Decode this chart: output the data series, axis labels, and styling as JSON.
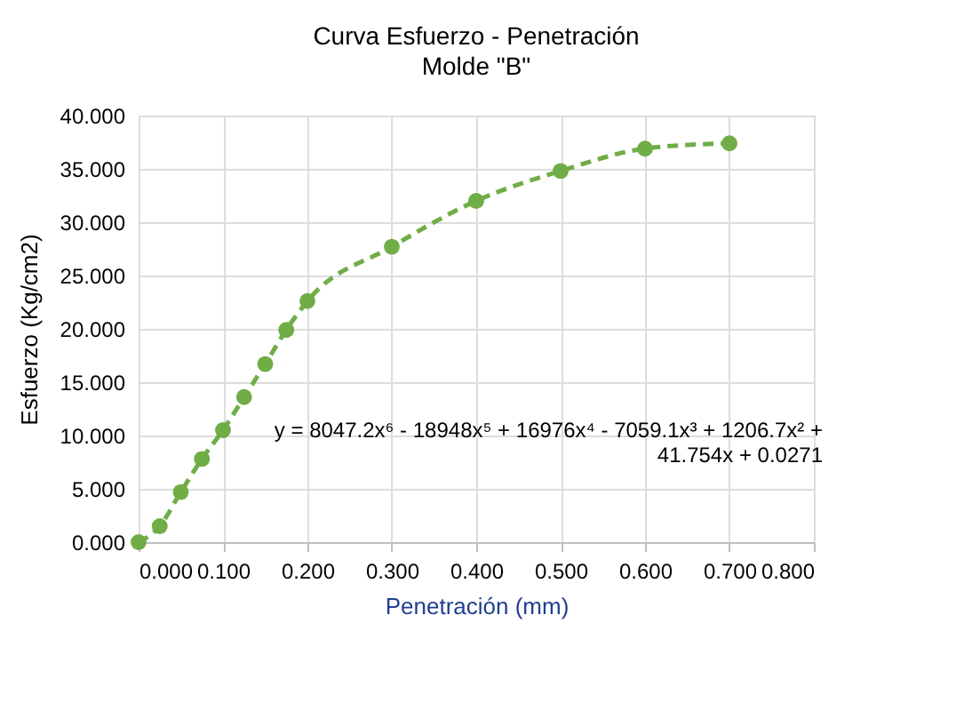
{
  "chart_data": {
    "type": "line",
    "title": "Curva Esfuerzo - Penetración",
    "subtitle": "Molde \"B\"",
    "xlabel": "Penetración (mm)",
    "ylabel": "Esfuerzo (Kg/cm2)",
    "x": [
      0,
      0.025,
      0.05,
      0.075,
      0.1,
      0.125,
      0.15,
      0.175,
      0.2,
      0.3,
      0.4,
      0.5,
      0.6,
      0.7
    ],
    "series": [
      {
        "color": "#70ad47",
        "values": [
          0,
          1.5,
          4.7,
          7.8,
          10.5,
          13.6,
          16.7,
          19.9,
          22.6,
          27.7,
          32.0,
          34.8,
          36.9,
          37.4
        ]
      }
    ],
    "marker": "circle",
    "line_style": "dashed",
    "grid": true,
    "xlim": [
      0,
      0.8
    ],
    "ylim": [
      0,
      40
    ],
    "xticks": [
      {
        "value": 0,
        "label": "0.000"
      },
      {
        "value": 0.1,
        "label": "0.100"
      },
      {
        "value": 0.2,
        "label": "0.200"
      },
      {
        "value": 0.3,
        "label": "0.300"
      },
      {
        "value": 0.4,
        "label": "0.400"
      },
      {
        "value": 0.5,
        "label": "0.500"
      },
      {
        "value": 0.6,
        "label": "0.600"
      },
      {
        "value": 0.7,
        "label": "0.700"
      },
      {
        "value": 0.8,
        "label": "0.800"
      }
    ],
    "yticks": [
      {
        "value": 0,
        "label": "0.000"
      },
      {
        "value": 5,
        "label": "5.000"
      },
      {
        "value": 10,
        "label": "10.000"
      },
      {
        "value": 15,
        "label": "15.000"
      },
      {
        "value": 20,
        "label": "20.000"
      },
      {
        "value": 25,
        "label": "25.000"
      },
      {
        "value": 30,
        "label": "30.000"
      },
      {
        "value": 35,
        "label": "35.000"
      },
      {
        "value": 40,
        "label": "40.000"
      }
    ],
    "annotations": [
      "y = 8047.2x⁶ - 18948x⁵ + 16976x⁴ - 7059.1x³ + 1206.7x² +\n41.754x + 0.0271"
    ]
  }
}
